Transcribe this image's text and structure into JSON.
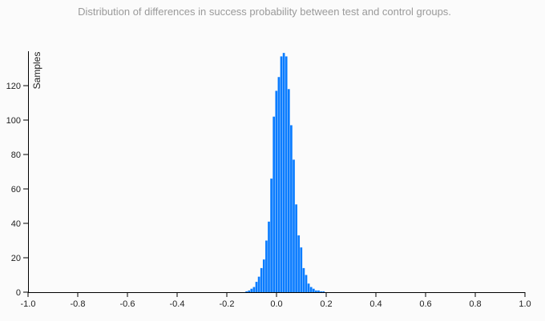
{
  "chart_data": {
    "type": "bar",
    "title": "Distribution of differences in success probability between test and control groups.",
    "xlabel": "",
    "ylabel": "Samples",
    "xlim": [
      -1.0,
      1.0
    ],
    "ylim": [
      0,
      140
    ],
    "x_ticks": [
      "-1.0",
      "-0.8",
      "-0.6",
      "-0.4",
      "-0.2",
      "0.0",
      "0.2",
      "0.4",
      "0.6",
      "0.8",
      "1.0"
    ],
    "y_ticks": [
      "0",
      "20",
      "40",
      "60",
      "80",
      "100",
      "120"
    ],
    "bar_color": "#0a7cff",
    "bin_width": 0.01,
    "bins": [
      {
        "x": -0.12,
        "y": 0.5
      },
      {
        "x": -0.11,
        "y": 1
      },
      {
        "x": -0.1,
        "y": 2
      },
      {
        "x": -0.09,
        "y": 3
      },
      {
        "x": -0.08,
        "y": 6
      },
      {
        "x": -0.07,
        "y": 9
      },
      {
        "x": -0.06,
        "y": 14
      },
      {
        "x": -0.05,
        "y": 19
      },
      {
        "x": -0.04,
        "y": 30
      },
      {
        "x": -0.03,
        "y": 41
      },
      {
        "x": -0.02,
        "y": 66
      },
      {
        "x": -0.01,
        "y": 102
      },
      {
        "x": 0.0,
        "y": 117
      },
      {
        "x": 0.01,
        "y": 125
      },
      {
        "x": 0.02,
        "y": 137
      },
      {
        "x": 0.03,
        "y": 139
      },
      {
        "x": 0.04,
        "y": 137
      },
      {
        "x": 0.05,
        "y": 118
      },
      {
        "x": 0.06,
        "y": 97
      },
      {
        "x": 0.07,
        "y": 77
      },
      {
        "x": 0.08,
        "y": 51
      },
      {
        "x": 0.09,
        "y": 33
      },
      {
        "x": 0.1,
        "y": 26
      },
      {
        "x": 0.11,
        "y": 14
      },
      {
        "x": 0.12,
        "y": 10
      },
      {
        "x": 0.13,
        "y": 5
      },
      {
        "x": 0.14,
        "y": 3
      },
      {
        "x": 0.15,
        "y": 2
      },
      {
        "x": 0.16,
        "y": 1
      },
      {
        "x": 0.17,
        "y": 1
      },
      {
        "x": 0.18,
        "y": 0.5
      },
      {
        "x": 0.19,
        "y": 0.5
      }
    ]
  }
}
